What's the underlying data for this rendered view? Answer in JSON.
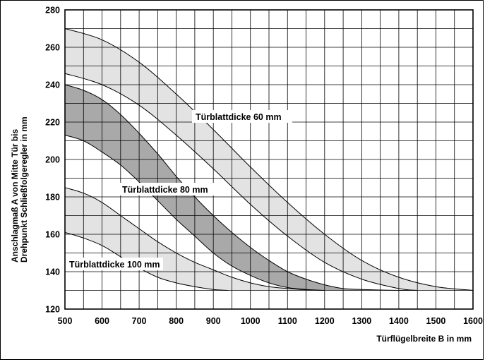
{
  "chart_data": {
    "type": "area",
    "title": "",
    "xlabel": "Türflügelbreite B in mm",
    "ylabel_line1": "Anschlagmaß A von Mitte Tür bis",
    "ylabel_line2": "Drehpunkt Schließfolgeregler in mm",
    "xlim": [
      500,
      1600
    ],
    "ylim": [
      120,
      280
    ],
    "grid": true,
    "x_ticks": [
      "500",
      "600",
      "700",
      "800",
      "900",
      "1000",
      "1100",
      "1200",
      "1300",
      "1400",
      "1500",
      "1600"
    ],
    "y_ticks": [
      "120",
      "140",
      "160",
      "180",
      "200",
      "220",
      "240",
      "260",
      "280"
    ],
    "floor_y": 130,
    "series": [
      {
        "name": "Türblattdicke 60 mm",
        "fill": "#e3e3e3",
        "upper": {
          "x": [
            500,
            600,
            700,
            800,
            900,
            1000,
            1100,
            1200,
            1300,
            1400,
            1500,
            1600
          ],
          "y": [
            270,
            264,
            252,
            235,
            216,
            196,
            177,
            160,
            146,
            137,
            132,
            130
          ]
        },
        "lower": {
          "x": [
            500,
            600,
            700,
            800,
            900,
            1000,
            1100,
            1200,
            1300,
            1400,
            1450
          ],
          "y": [
            246,
            240,
            229,
            213,
            195,
            176,
            159,
            145,
            136,
            131,
            130
          ]
        }
      },
      {
        "name": "Türblattdicke 80 mm",
        "fill": "#a9a9a9",
        "upper": {
          "x": [
            500,
            550,
            600,
            650,
            700,
            750,
            800,
            850,
            900,
            950,
            1000,
            1050,
            1100,
            1150,
            1200,
            1250,
            1300,
            1350,
            1400,
            1450
          ],
          "y": [
            240,
            237,
            232,
            224,
            214,
            203,
            191,
            180,
            170,
            161,
            153,
            146,
            140,
            136,
            133,
            131,
            130.5,
            130.2,
            130,
            130
          ]
        },
        "lower": {
          "x": [
            500,
            550,
            600,
            650,
            700,
            750,
            800,
            850,
            900,
            950,
            1000,
            1050,
            1100,
            1150,
            1200
          ],
          "y": [
            213,
            210,
            204,
            197,
            188,
            178,
            168,
            159,
            150,
            143,
            138,
            134,
            131.5,
            130.5,
            130
          ]
        }
      },
      {
        "name": "Türblattdicke 100 mm",
        "fill": "#e3e3e3",
        "upper": {
          "x": [
            500,
            550,
            600,
            650,
            700,
            750,
            800,
            850,
            900,
            950,
            1000,
            1050,
            1100,
            1150,
            1200
          ],
          "y": [
            185,
            182,
            177,
            170,
            163,
            156,
            150,
            145,
            141,
            137,
            134,
            132,
            131,
            130.3,
            130
          ]
        },
        "lower": {
          "x": [
            500,
            550,
            600,
            650,
            700,
            750,
            800,
            850,
            900,
            940
          ],
          "y": [
            161,
            158,
            154,
            148,
            142,
            137,
            134,
            132,
            130.5,
            130
          ]
        }
      }
    ]
  }
}
